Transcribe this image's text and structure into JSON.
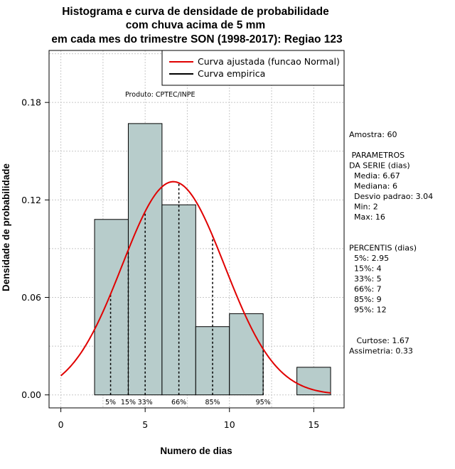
{
  "chart_data": {
    "type": "bar",
    "title": [
      "Histograma e curva de densidade de probabilidade",
      "com chuva acima de 5 mm",
      "em cada mes do trimestre SON (1998-2017): Regiao 123"
    ],
    "xlabel": "Numero de dias",
    "ylabel": "Densidade de probabilidade",
    "xlim": [
      -0.7,
      16.8
    ],
    "ylim": [
      -0.008,
      0.212
    ],
    "xticks": [
      0,
      5,
      10,
      15
    ],
    "yticks": [
      0.0,
      0.06,
      0.12,
      0.18
    ],
    "ytick_labels": [
      "0.00",
      "0.06",
      "0.12",
      "0.18"
    ],
    "grid": true,
    "bins": [
      {
        "from": 2,
        "to": 4,
        "density": 0.108
      },
      {
        "from": 4,
        "to": 6,
        "density": 0.167
      },
      {
        "from": 6,
        "to": 8,
        "density": 0.117
      },
      {
        "from": 8,
        "to": 10,
        "density": 0.042
      },
      {
        "from": 10,
        "to": 12,
        "density": 0.05
      },
      {
        "from": 12,
        "to": 14,
        "density": 0.0
      },
      {
        "from": 14,
        "to": 16,
        "density": 0.017
      }
    ],
    "bar_color": "#b7cccb",
    "normal_fit": {
      "mean": 6.67,
      "sd": 3.04,
      "from": 0,
      "to": 16,
      "color": "#e00000"
    },
    "percentile_lines": [
      {
        "label": "5%",
        "x": 2.95
      },
      {
        "label": "15%",
        "x": 4
      },
      {
        "label": "33%",
        "x": 5
      },
      {
        "label": "66%",
        "x": 7
      },
      {
        "label": "85%",
        "x": 9
      },
      {
        "label": "95%",
        "x": 12
      }
    ],
    "legend": {
      "placement": "top-right",
      "entries": [
        {
          "label": "Curva ajustada (funcao Normal)",
          "color": "#e00000"
        },
        {
          "label": "Curva empirica",
          "color": "#000000"
        }
      ]
    },
    "annotation": "Produto: CPTEC/INPE",
    "side_info": [
      "Amostra: 60",
      "",
      " PARAMETROS",
      "DA SERIE (dias)",
      "  Media: 6.67",
      "  Mediana: 6",
      "  Desvio padrao: 3.04",
      "  Min: 2",
      "  Max: 16",
      "",
      "",
      "PERCENTIS (dias)",
      "  5%: 2.95",
      "  15%: 4",
      "  33%: 5",
      "  66%: 7",
      "  85%: 9",
      "  95%: 12",
      "",
      "",
      "   Curtose: 1.67",
      "Assimetria: 0.33"
    ]
  }
}
